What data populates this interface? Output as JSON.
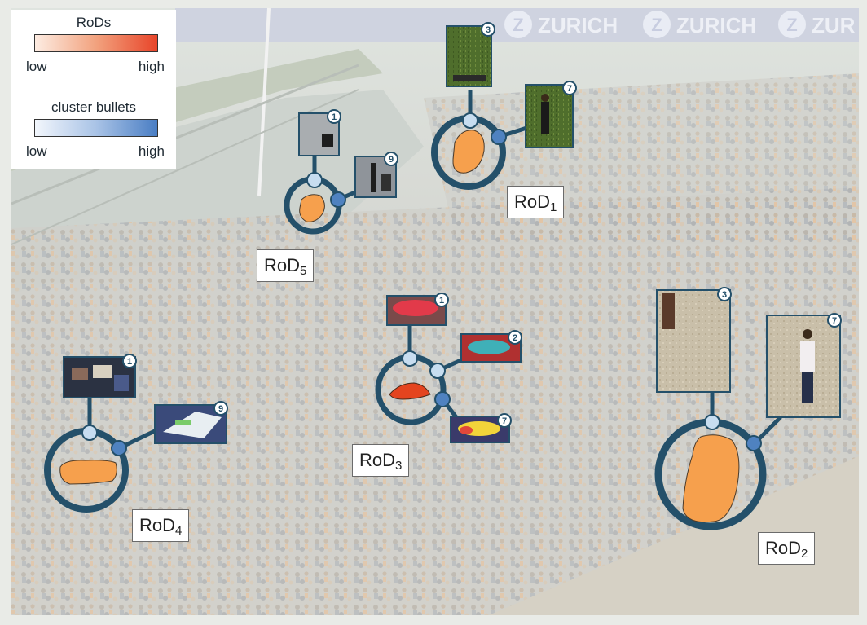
{
  "banner": {
    "text_1": "ZURICH",
    "text_2": "ZURICH",
    "text_3": "ZUR"
  },
  "legend": {
    "rods": {
      "title": "RoDs",
      "low": "low",
      "high": "high",
      "color_low": "#fdece2",
      "color_high": "#e8452a"
    },
    "bullets": {
      "title": "cluster bullets",
      "low": "low",
      "high": "high",
      "color_low": "#f2f6fc",
      "color_high": "#4a7ec4"
    }
  },
  "colors": {
    "ring": "#24506a",
    "node_light": "#c7ddf0",
    "node_dark": "#4f82c0",
    "rod_fill": "#f6a04d",
    "rod_fill_strong": "#e4441f"
  },
  "rods": [
    {
      "id": "rod1",
      "label_main": "RoD",
      "label_sub": "1",
      "thumbs": [
        {
          "badge": "3",
          "icon": "grass-person-thumbnail"
        },
        {
          "badge": "7",
          "icon": "person-standing-thumbnail"
        }
      ]
    },
    {
      "id": "rod2",
      "label_main": "RoD",
      "label_sub": "2",
      "thumbs": [
        {
          "badge": "3",
          "icon": "gravel-thumbnail"
        },
        {
          "badge": "7",
          "icon": "person-walking-thumbnail"
        }
      ]
    },
    {
      "id": "rod3",
      "label_main": "RoD",
      "label_sub": "3",
      "thumbs": [
        {
          "badge": "1",
          "icon": "red-umbrella-thumbnail"
        },
        {
          "badge": "2",
          "icon": "teal-umbrella-thumbnail"
        },
        {
          "badge": "7",
          "icon": "yellow-umbrella-thumbnail"
        }
      ]
    },
    {
      "id": "rod4",
      "label_main": "RoD",
      "label_sub": "4",
      "thumbs": [
        {
          "badge": "1",
          "icon": "crowd-thumbnail"
        },
        {
          "badge": "9",
          "icon": "white-banner-thumbnail"
        }
      ]
    },
    {
      "id": "rod5",
      "label_main": "RoD",
      "label_sub": "5",
      "thumbs": [
        {
          "badge": "1",
          "icon": "rider-thumbnail"
        },
        {
          "badge": "9",
          "icon": "camera-rig-thumbnail"
        }
      ]
    }
  ]
}
